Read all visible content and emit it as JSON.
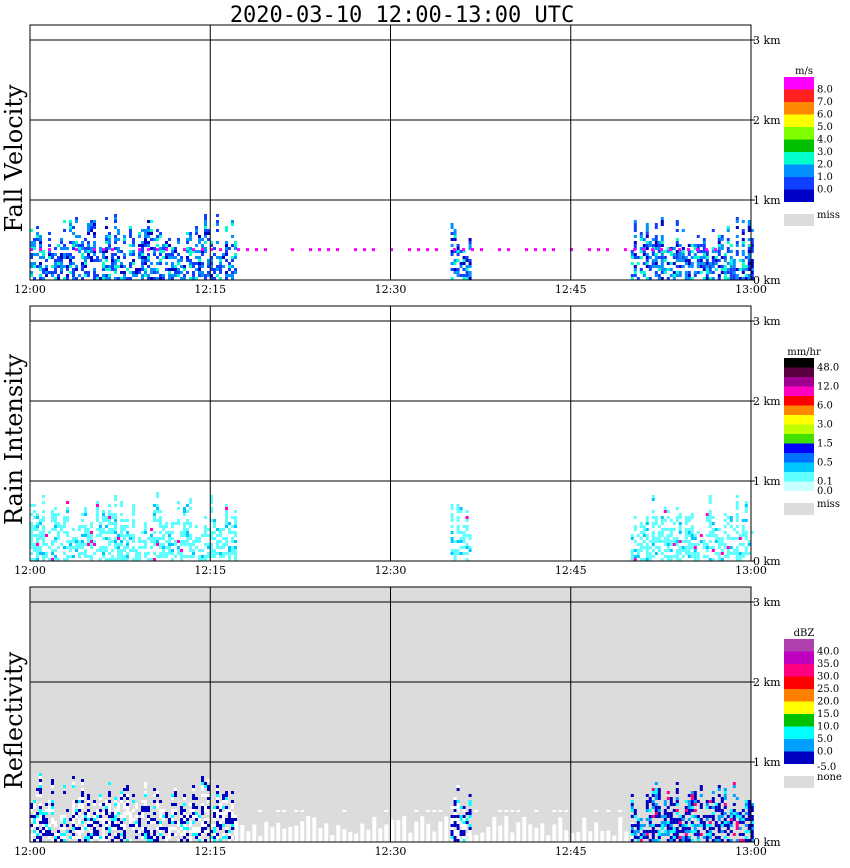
{
  "title": "2020-03-10   12:00-13:00 UTC",
  "time_ticks": [
    "12:00",
    "12:15",
    "12:30",
    "12:45",
    "13:00"
  ],
  "height_ticks": [
    "0 km",
    "1 km",
    "2 km",
    "3 km"
  ],
  "chart_data": [
    {
      "type": "heatmap",
      "title": "Fall Velocity",
      "xlabel": "",
      "ylabel": "Fall Velocity",
      "x_range": [
        "12:00",
        "13:00"
      ],
      "y_range_km": [
        0,
        3.2
      ],
      "grid": true,
      "colorbar": {
        "unit": "m/s",
        "labels": [
          "8.0",
          "7.0",
          "6.0",
          "5.0",
          "4.0",
          "3.0",
          "2.0",
          "1.0",
          "0.0"
        ],
        "colors": [
          "#ff00ff",
          "#ff2020",
          "#ff8800",
          "#ffff00",
          "#80ff00",
          "#00c000",
          "#00ffcc",
          "#0090ff",
          "#1040ff",
          "#0000c8"
        ],
        "missing_label": "miss",
        "missing_color": "#dcdcdc"
      },
      "echo_regions": [
        {
          "t_start_min": 0,
          "t_end_min": 17,
          "top_km": 0.85,
          "dominant": "1.0-2.0"
        },
        {
          "t_start_min": 35,
          "t_end_min": 36.5,
          "top_km": 0.8,
          "dominant": "1.0-2.0"
        },
        {
          "t_start_min": 50,
          "t_end_min": 60,
          "top_km": 0.8,
          "dominant": "0.0-1.0"
        }
      ],
      "features": [
        {
          "description_value": "8.0",
          "height_km": 0.38,
          "t_start_min": 0,
          "t_end_min": 57
        }
      ]
    },
    {
      "type": "heatmap",
      "title": "Rain Intensity",
      "xlabel": "",
      "ylabel": "Rain Intensity",
      "x_range": [
        "12:00",
        "13:00"
      ],
      "y_range_km": [
        0,
        3.2
      ],
      "grid": true,
      "colorbar": {
        "unit": "mm/hr",
        "labels": [
          "48.0",
          "12.0",
          "6.0",
          "3.0",
          "1.5",
          "0.5",
          "0.1",
          "0.0"
        ],
        "colors": [
          "#000000",
          "#5a0040",
          "#a00090",
          "#ff00c0",
          "#ff0000",
          "#ff8800",
          "#ffff00",
          "#c0ff00",
          "#40e000",
          "#0000ff",
          "#0070ff",
          "#00c8ff",
          "#60ffff",
          "#c8ffff"
        ],
        "missing_label": "miss",
        "missing_color": "#dcdcdc"
      },
      "echo_regions": [
        {
          "t_start_min": 0,
          "t_end_min": 17,
          "top_km": 0.85,
          "dominant": "0.1-0.5"
        },
        {
          "t_start_min": 35,
          "t_end_min": 36.5,
          "top_km": 0.8,
          "dominant": "0.1-0.5"
        },
        {
          "t_start_min": 50,
          "t_end_min": 60,
          "top_km": 0.8,
          "dominant": "0.1-0.5"
        }
      ]
    },
    {
      "type": "heatmap",
      "title": "Reflectivity",
      "xlabel": "",
      "ylabel": "Reflectivity",
      "x_range": [
        "12:00",
        "13:00"
      ],
      "y_range_km": [
        0,
        3.2
      ],
      "grid": true,
      "colorbar": {
        "unit": "dBZ",
        "labels": [
          "40.0",
          "35.0",
          "30.0",
          "25.0",
          "20.0",
          "15.0",
          "10.0",
          "5.0",
          "0.0",
          "-5.0"
        ],
        "colors": [
          "#b040b0",
          "#c000c0",
          "#ff0080",
          "#ff0000",
          "#ff8000",
          "#ffff00",
          "#00c000",
          "#00ffff",
          "#00a0ff",
          "#0000c0"
        ],
        "missing_label": "none",
        "missing_color": "#dcdcdc"
      },
      "echo_regions": [
        {
          "t_start_min": 0,
          "t_end_min": 17,
          "top_km": 0.85,
          "dominant": "-5.0-0.0"
        },
        {
          "t_start_min": 35,
          "t_end_min": 36.5,
          "top_km": 0.8,
          "dominant": "-5.0-0.0"
        },
        {
          "t_start_min": 50,
          "t_end_min": 60,
          "top_km": 0.8,
          "dominant": "-5.0-5.0"
        }
      ]
    }
  ]
}
